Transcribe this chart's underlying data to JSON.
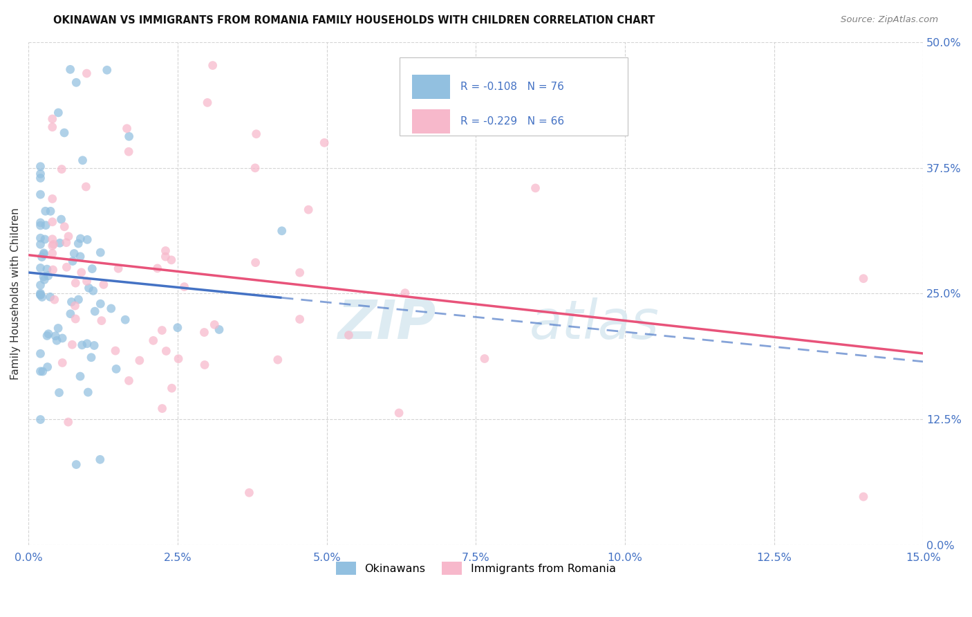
{
  "title": "OKINAWAN VS IMMIGRANTS FROM ROMANIA FAMILY HOUSEHOLDS WITH CHILDREN CORRELATION CHART",
  "source": "Source: ZipAtlas.com",
  "ylabel": "Family Households with Children",
  "R1": "-0.108",
  "N1": "76",
  "R2": "-0.229",
  "N2": "66",
  "color_blue": "#92c0e0",
  "color_pink": "#f7b8cb",
  "color_blue_line": "#4472c4",
  "color_pink_line": "#e8537a",
  "legend_label1": "Okinawans",
  "legend_label2": "Immigrants from Romania",
  "xlim": [
    0,
    0.15
  ],
  "ylim": [
    0,
    0.5
  ],
  "xtick_vals": [
    0,
    0.025,
    0.05,
    0.075,
    0.1,
    0.125,
    0.15
  ],
  "xtick_labels": [
    "0.0%",
    "2.5%",
    "5.0%",
    "7.5%",
    "10.0%",
    "12.5%",
    "15.0%"
  ],
  "ytick_vals": [
    0,
    0.125,
    0.25,
    0.375,
    0.5
  ],
  "ytick_labels": [
    "0.0%",
    "12.5%",
    "25.0%",
    "37.5%",
    "50.0%"
  ],
  "tick_color": "#4472c4",
  "grid_color": "#d0d0d0",
  "bg_color": "#ffffff",
  "watermark_zip": "ZIP",
  "watermark_atlas": "atlas",
  "source_color": "#808080"
}
